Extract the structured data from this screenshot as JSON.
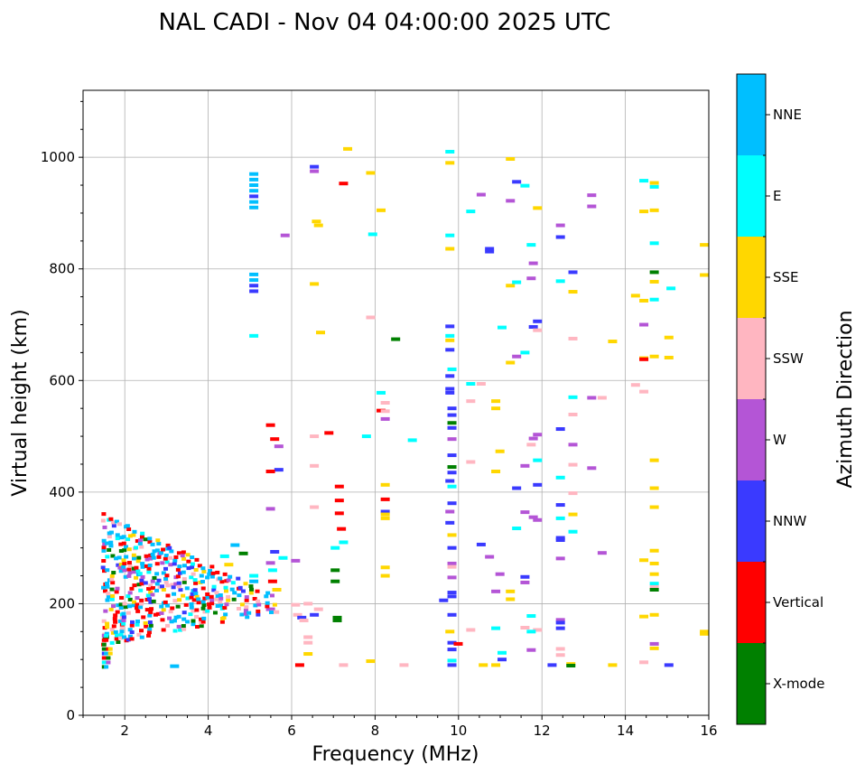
{
  "chart_data": {
    "type": "scatter",
    "title": "NAL CADI - Nov 04 04:00:00 2025 UTC",
    "xlabel": "Frequency (MHz)",
    "ylabel": "Virtual height (km)",
    "xlim": [
      1,
      16
    ],
    "ylim": [
      0,
      1120
    ],
    "xticks": [
      2,
      4,
      6,
      8,
      10,
      12,
      14,
      16
    ],
    "xtick_labels": [
      "2",
      "4",
      "6",
      "8",
      "10",
      "12",
      "14",
      "16"
    ],
    "yticks": [
      0,
      200,
      400,
      600,
      800,
      1000
    ],
    "ytick_labels": [
      "0",
      "200",
      "400",
      "600",
      "800",
      "1000"
    ],
    "grid": true,
    "colorbar": {
      "label": "Azimuth Direction",
      "categories": [
        "X-mode",
        "Vertical",
        "NNW",
        "W",
        "SSW",
        "SSE",
        "E",
        "NNE"
      ],
      "colors": [
        "#008000",
        "#ff0000",
        "#3a3aff",
        "#b455d6",
        "#ffb6c1",
        "#ffd700",
        "#00ffff",
        "#00bfff"
      ]
    },
    "points": [
      [
        5.05,
        970,
        "NNE"
      ],
      [
        5.05,
        960,
        "NNE"
      ],
      [
        5.05,
        950,
        "NNE"
      ],
      [
        5.05,
        940,
        "NNE"
      ],
      [
        5.05,
        930,
        "NNW"
      ],
      [
        5.05,
        920,
        "NNE"
      ],
      [
        5.05,
        910,
        "NNE"
      ],
      [
        5.05,
        790,
        "NNE"
      ],
      [
        5.05,
        780,
        "NNE"
      ],
      [
        5.05,
        770,
        "NNW"
      ],
      [
        5.05,
        760,
        "NNW"
      ],
      [
        5.05,
        680,
        "E"
      ],
      [
        5.05,
        250,
        "E"
      ],
      [
        5.05,
        240,
        "NNE"
      ],
      [
        6.5,
        983,
        "NNW"
      ],
      [
        6.5,
        975,
        "W"
      ],
      [
        6.55,
        885,
        "SSE"
      ],
      [
        6.6,
        878,
        "SSE"
      ],
      [
        6.5,
        773,
        "SSE"
      ],
      [
        6.65,
        686,
        "SSE"
      ],
      [
        5.8,
        860,
        "W"
      ],
      [
        7.3,
        1015,
        "SSE"
      ],
      [
        7.2,
        953,
        "Vertical"
      ],
      [
        7.85,
        972,
        "SSE"
      ],
      [
        8.1,
        905,
        "SSE"
      ],
      [
        7.9,
        862,
        "E"
      ],
      [
        7.85,
        713,
        "SSW"
      ],
      [
        8.45,
        674,
        "X-mode"
      ],
      [
        9.75,
        1010,
        "E"
      ],
      [
        9.75,
        990,
        "SSE"
      ],
      [
        9.75,
        860,
        "E"
      ],
      [
        9.75,
        836,
        "SSE"
      ],
      [
        9.75,
        697,
        "NNW"
      ],
      [
        9.75,
        680,
        "E"
      ],
      [
        9.75,
        672,
        "SSE"
      ],
      [
        9.75,
        655,
        "NNW"
      ],
      [
        9.8,
        620,
        "E"
      ],
      [
        9.75,
        608,
        "NNW"
      ],
      [
        9.75,
        585,
        "NNW"
      ],
      [
        9.75,
        578,
        "NNW"
      ],
      [
        9.8,
        550,
        "NNW"
      ],
      [
        9.8,
        538,
        "NNW"
      ],
      [
        9.8,
        524,
        "X-mode"
      ],
      [
        9.8,
        515,
        "NNW"
      ],
      [
        9.8,
        495,
        "W"
      ],
      [
        9.8,
        466,
        "NNW"
      ],
      [
        9.8,
        445,
        "X-mode"
      ],
      [
        9.8,
        435,
        "NNW"
      ],
      [
        9.75,
        420,
        "NNW"
      ],
      [
        9.8,
        410,
        "E"
      ],
      [
        9.8,
        380,
        "NNW"
      ],
      [
        9.75,
        365,
        "W"
      ],
      [
        9.75,
        345,
        "NNW"
      ],
      [
        9.8,
        323,
        "SSE"
      ],
      [
        9.8,
        300,
        "NNW"
      ],
      [
        9.8,
        272,
        "W"
      ],
      [
        9.8,
        266,
        "SSW"
      ],
      [
        9.8,
        247,
        "W"
      ],
      [
        9.8,
        220,
        "NNW"
      ],
      [
        9.8,
        213,
        "NNW"
      ],
      [
        9.6,
        206,
        "NNW"
      ],
      [
        9.8,
        180,
        "NNW"
      ],
      [
        9.75,
        150,
        "SSE"
      ],
      [
        9.8,
        130,
        "NNW"
      ],
      [
        9.8,
        118,
        "NNW"
      ],
      [
        9.8,
        98,
        "E"
      ],
      [
        9.8,
        90,
        "NNW"
      ],
      [
        9.95,
        128,
        "Vertical"
      ],
      [
        10.25,
        903,
        "E"
      ],
      [
        10.5,
        933,
        "W"
      ],
      [
        10.7,
        836,
        "NNW"
      ],
      [
        10.7,
        831,
        "NNW"
      ],
      [
        10.25,
        594,
        "E"
      ],
      [
        10.5,
        594,
        "SSW"
      ],
      [
        10.25,
        563,
        "SSW"
      ],
      [
        10.85,
        563,
        "SSE"
      ],
      [
        10.85,
        550,
        "SSE"
      ],
      [
        10.25,
        454,
        "SSW"
      ],
      [
        10.85,
        437,
        "SSE"
      ],
      [
        10.95,
        473,
        "SSE"
      ],
      [
        10.5,
        306,
        "NNW"
      ],
      [
        10.7,
        284,
        "W"
      ],
      [
        10.95,
        253,
        "W"
      ],
      [
        10.85,
        222,
        "W"
      ],
      [
        10.25,
        153,
        "SSW"
      ],
      [
        10.85,
        156,
        "E"
      ],
      [
        11.0,
        100,
        "NNW"
      ],
      [
        11.0,
        112,
        "E"
      ],
      [
        10.55,
        90,
        "SSE"
      ],
      [
        10.85,
        90,
        "SSE"
      ],
      [
        11.2,
        997,
        "SSE"
      ],
      [
        11.35,
        956,
        "NNW"
      ],
      [
        11.55,
        949,
        "E"
      ],
      [
        11.2,
        922,
        "W"
      ],
      [
        11.85,
        909,
        "SSE"
      ],
      [
        11.7,
        843,
        "E"
      ],
      [
        11.75,
        810,
        "W"
      ],
      [
        11.7,
        783,
        "W"
      ],
      [
        11.2,
        770,
        "SSE"
      ],
      [
        11.35,
        776,
        "E"
      ],
      [
        11.0,
        695,
        "E"
      ],
      [
        11.75,
        696,
        "NNW"
      ],
      [
        11.85,
        706,
        "NNW"
      ],
      [
        11.85,
        690,
        "SSW"
      ],
      [
        11.55,
        650,
        "E"
      ],
      [
        11.35,
        643,
        "W"
      ],
      [
        11.2,
        632,
        "SSE"
      ],
      [
        11.75,
        496,
        "W"
      ],
      [
        11.85,
        503,
        "W"
      ],
      [
        11.7,
        485,
        "SSW"
      ],
      [
        11.85,
        457,
        "E"
      ],
      [
        11.55,
        447,
        "W"
      ],
      [
        11.35,
        407,
        "NNW"
      ],
      [
        11.85,
        413,
        "NNW"
      ],
      [
        11.55,
        364,
        "W"
      ],
      [
        11.75,
        355,
        "W"
      ],
      [
        11.85,
        350,
        "W"
      ],
      [
        11.35,
        335,
        "E"
      ],
      [
        11.55,
        248,
        "NNW"
      ],
      [
        11.55,
        238,
        "W"
      ],
      [
        11.2,
        222,
        "SSE"
      ],
      [
        11.2,
        208,
        "SSE"
      ],
      [
        11.7,
        178,
        "E"
      ],
      [
        11.55,
        157,
        "SSW"
      ],
      [
        11.85,
        153,
        "SSW"
      ],
      [
        11.7,
        150,
        "E"
      ],
      [
        11.7,
        117,
        "W"
      ],
      [
        12.4,
        878,
        "W"
      ],
      [
        12.4,
        857,
        "NNW"
      ],
      [
        12.7,
        794,
        "NNW"
      ],
      [
        12.4,
        778,
        "E"
      ],
      [
        12.7,
        759,
        "SSE"
      ],
      [
        12.7,
        675,
        "SSW"
      ],
      [
        12.7,
        570,
        "E"
      ],
      [
        12.7,
        539,
        "SSW"
      ],
      [
        12.4,
        513,
        "NNW"
      ],
      [
        12.7,
        485,
        "W"
      ],
      [
        12.7,
        449,
        "SSW"
      ],
      [
        12.4,
        426,
        "E"
      ],
      [
        12.7,
        398,
        "SSW"
      ],
      [
        12.4,
        377,
        "NNW"
      ],
      [
        12.4,
        353,
        "E"
      ],
      [
        12.7,
        360,
        "SSE"
      ],
      [
        12.4,
        318,
        "NNW"
      ],
      [
        12.4,
        314,
        "NNW"
      ],
      [
        12.7,
        329,
        "E"
      ],
      [
        12.4,
        281,
        "W"
      ],
      [
        12.4,
        171,
        "W"
      ],
      [
        12.4,
        166,
        "NNW"
      ],
      [
        12.4,
        156,
        "NNW"
      ],
      [
        12.4,
        119,
        "SSW"
      ],
      [
        12.4,
        108,
        "SSW"
      ],
      [
        12.2,
        90,
        "NNW"
      ],
      [
        12.65,
        92,
        "SSE"
      ],
      [
        12.65,
        89,
        "X-mode"
      ],
      [
        13.15,
        932,
        "W"
      ],
      [
        13.15,
        912,
        "W"
      ],
      [
        13.4,
        569,
        "SSW"
      ],
      [
        13.15,
        569,
        "W"
      ],
      [
        13.15,
        443,
        "W"
      ],
      [
        13.4,
        291,
        "W"
      ],
      [
        13.65,
        670,
        "SSE"
      ],
      [
        13.65,
        90,
        "SSE"
      ],
      [
        14.4,
        958,
        "E"
      ],
      [
        14.65,
        954,
        "SSE"
      ],
      [
        14.65,
        947,
        "E"
      ],
      [
        14.4,
        903,
        "SSE"
      ],
      [
        14.65,
        905,
        "SSE"
      ],
      [
        14.65,
        846,
        "E"
      ],
      [
        14.65,
        794,
        "X-mode"
      ],
      [
        14.2,
        752,
        "SSE"
      ],
      [
        14.4,
        743,
        "SSE"
      ],
      [
        14.65,
        745,
        "E"
      ],
      [
        14.65,
        777,
        "SSE"
      ],
      [
        15.05,
        765,
        "E"
      ],
      [
        14.4,
        700,
        "W"
      ],
      [
        15.0,
        677,
        "SSE"
      ],
      [
        14.4,
        640,
        "SSE"
      ],
      [
        14.4,
        638,
        "Vertical"
      ],
      [
        14.65,
        643,
        "SSE"
      ],
      [
        15.0,
        641,
        "SSE"
      ],
      [
        14.2,
        592,
        "SSW"
      ],
      [
        14.4,
        580,
        "SSW"
      ],
      [
        14.65,
        457,
        "SSE"
      ],
      [
        14.65,
        407,
        "SSE"
      ],
      [
        14.65,
        373,
        "SSE"
      ],
      [
        14.65,
        295,
        "SSE"
      ],
      [
        14.4,
        278,
        "SSE"
      ],
      [
        14.65,
        272,
        "SSE"
      ],
      [
        14.65,
        253,
        "SSE"
      ],
      [
        14.65,
        236,
        "E"
      ],
      [
        14.65,
        230,
        "SSW"
      ],
      [
        14.65,
        225,
        "X-mode"
      ],
      [
        14.4,
        177,
        "SSE"
      ],
      [
        14.65,
        180,
        "SSE"
      ],
      [
        14.65,
        128,
        "W"
      ],
      [
        14.65,
        120,
        "SSE"
      ],
      [
        14.4,
        95,
        "SSW"
      ],
      [
        15.0,
        90,
        "NNW"
      ],
      [
        15.85,
        843,
        "SSE"
      ],
      [
        15.85,
        789,
        "SSE"
      ],
      [
        15.85,
        150,
        "SSE"
      ],
      [
        15.85,
        146,
        "SSE"
      ],
      [
        6.05,
        277,
        "W"
      ],
      [
        6.05,
        198,
        "SSW"
      ],
      [
        6.1,
        180,
        "SSW"
      ],
      [
        6.2,
        175,
        "NNW"
      ],
      [
        6.25,
        170,
        "SSW"
      ],
      [
        6.15,
        90,
        "Vertical"
      ],
      [
        6.35,
        200,
        "SSW"
      ],
      [
        6.35,
        140,
        "SSW"
      ],
      [
        6.35,
        130,
        "SSW"
      ],
      [
        6.35,
        110,
        "SSE"
      ],
      [
        6.5,
        180,
        "NNW"
      ],
      [
        6.6,
        190,
        "SSW"
      ],
      [
        6.5,
        500,
        "SSW"
      ],
      [
        6.5,
        447,
        "SSW"
      ],
      [
        6.5,
        373,
        "SSW"
      ],
      [
        6.85,
        506,
        "Vertical"
      ],
      [
        7.1,
        410,
        "Vertical"
      ],
      [
        7.1,
        385,
        "Vertical"
      ],
      [
        7.1,
        362,
        "Vertical"
      ],
      [
        7.15,
        334,
        "Vertical"
      ],
      [
        7.2,
        310,
        "E"
      ],
      [
        7.0,
        300,
        "E"
      ],
      [
        7.0,
        260,
        "X-mode"
      ],
      [
        7.0,
        240,
        "X-mode"
      ],
      [
        7.05,
        175,
        "X-mode"
      ],
      [
        7.05,
        170,
        "X-mode"
      ],
      [
        7.2,
        90,
        "SSW"
      ],
      [
        7.85,
        97,
        "SSE"
      ],
      [
        7.75,
        500,
        "E"
      ],
      [
        8.1,
        578,
        "E"
      ],
      [
        8.1,
        546,
        "Vertical"
      ],
      [
        8.2,
        560,
        "SSW"
      ],
      [
        8.2,
        545,
        "SSW"
      ],
      [
        8.2,
        531,
        "W"
      ],
      [
        8.2,
        413,
        "SSE"
      ],
      [
        8.2,
        387,
        "Vertical"
      ],
      [
        8.2,
        365,
        "NNW"
      ],
      [
        8.2,
        360,
        "SSE"
      ],
      [
        8.2,
        353,
        "SSE"
      ],
      [
        8.2,
        265,
        "SSE"
      ],
      [
        8.2,
        250,
        "SSE"
      ],
      [
        8.65,
        90,
        "SSW"
      ],
      [
        8.85,
        493,
        "E"
      ],
      [
        5.45,
        520,
        "Vertical"
      ],
      [
        5.55,
        495,
        "Vertical"
      ],
      [
        5.65,
        482,
        "W"
      ],
      [
        5.65,
        440,
        "NNW"
      ],
      [
        5.45,
        437,
        "Vertical"
      ],
      [
        5.45,
        370,
        "W"
      ],
      [
        5.45,
        273,
        "W"
      ],
      [
        5.55,
        293,
        "NNW"
      ],
      [
        5.75,
        282,
        "E"
      ],
      [
        5.5,
        260,
        "E"
      ],
      [
        5.5,
        240,
        "Vertical"
      ],
      [
        5.6,
        225,
        "SSE"
      ],
      [
        5.45,
        190,
        "W"
      ],
      [
        5.55,
        185,
        "SSW"
      ],
      [
        3.15,
        88,
        "NNE"
      ],
      [
        4.6,
        305,
        "NNE"
      ],
      [
        4.8,
        290,
        "X-mode"
      ],
      [
        4.45,
        270,
        "SSE"
      ],
      [
        4.35,
        285,
        "E"
      ]
    ],
    "cluster": {
      "fmin": 1.45,
      "fmax": 5.6,
      "hmin": 90,
      "hmax": 365,
      "mix": [
        "NNE",
        "NNE",
        "E",
        "Vertical",
        "Vertical",
        "NNW",
        "W",
        "SSE",
        "SSW",
        "X-mode",
        "NNE",
        "Vertical"
      ]
    }
  }
}
